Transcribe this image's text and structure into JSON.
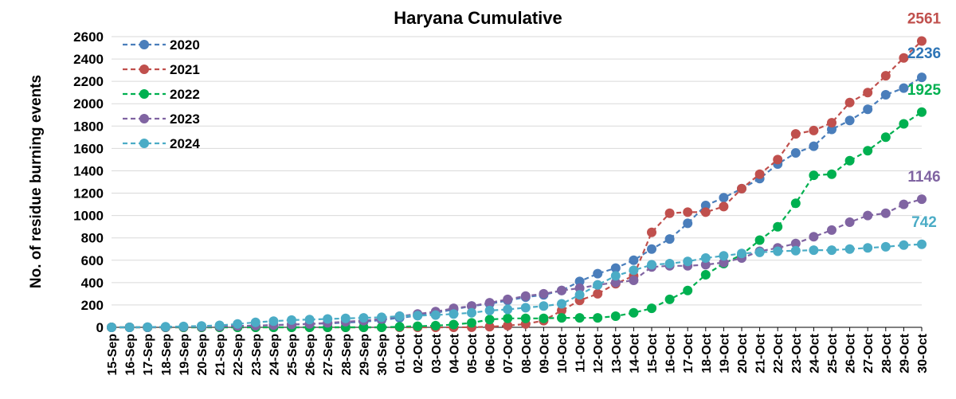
{
  "chart_data": {
    "type": "line",
    "title": "Haryana Cumulative",
    "xlabel": "",
    "ylabel": "No. of residue burning events",
    "ylim": [
      0,
      2600
    ],
    "yticks": [
      0,
      200,
      400,
      600,
      800,
      1000,
      1200,
      1400,
      1600,
      1800,
      2000,
      2200,
      2400,
      2600
    ],
    "grid": true,
    "legend_position": "top-left",
    "categories": [
      "15-Sep",
      "16-Sep",
      "17-Sep",
      "18-Sep",
      "19-Sep",
      "20-Sep",
      "21-Sep",
      "22-Sep",
      "23-Sep",
      "24-Sep",
      "25-Sep",
      "26-Sep",
      "27-Sep",
      "28-Sep",
      "29-Sep",
      "30-Sep",
      "01-Oct",
      "02-Oct",
      "03-Oct",
      "04-Oct",
      "05-Oct",
      "06-Oct",
      "07-Oct",
      "08-Oct",
      "09-Oct",
      "10-Oct",
      "11-Oct",
      "12-Oct",
      "13-Oct",
      "14-Oct",
      "15-Oct",
      "16-Oct",
      "17-Oct",
      "18-Oct",
      "19-Oct",
      "20-Oct",
      "21-Oct",
      "22-Oct",
      "23-Oct",
      "24-Oct",
      "25-Oct",
      "26-Oct",
      "27-Oct",
      "28-Oct",
      "29-Oct",
      "30-Oct"
    ],
    "series": [
      {
        "name": "2020",
        "color": "#4a7ebb",
        "end_label": "2236",
        "end_label_color": "#2e75b6",
        "values": [
          0,
          0,
          1,
          2,
          3,
          5,
          8,
          12,
          16,
          20,
          25,
          30,
          35,
          42,
          50,
          65,
          85,
          105,
          130,
          160,
          190,
          210,
          240,
          270,
          290,
          330,
          410,
          480,
          530,
          600,
          700,
          790,
          930,
          1090,
          1160,
          1240,
          1330,
          1460,
          1560,
          1620,
          1770,
          1850,
          1950,
          2080,
          2140,
          2236
        ]
      },
      {
        "name": "2021",
        "color": "#c0504d",
        "end_label": "2561",
        "end_label_color": "#c0504d",
        "values": [
          0,
          0,
          0,
          0,
          0,
          0,
          0,
          0,
          0,
          0,
          0,
          0,
          0,
          0,
          0,
          0,
          0,
          0,
          0,
          0,
          1,
          5,
          15,
          30,
          60,
          150,
          240,
          300,
          390,
          460,
          850,
          1020,
          1030,
          1030,
          1080,
          1240,
          1370,
          1500,
          1730,
          1760,
          1830,
          2010,
          2100,
          2250,
          2410,
          2561
        ]
      },
      {
        "name": "2022",
        "color": "#00b050",
        "end_label": "1925",
        "end_label_color": "#00b050",
        "values": [
          0,
          0,
          0,
          0,
          0,
          0,
          0,
          0,
          0,
          0,
          0,
          0,
          0,
          0,
          0,
          0,
          5,
          10,
          15,
          25,
          40,
          70,
          80,
          80,
          80,
          85,
          85,
          85,
          100,
          130,
          170,
          250,
          330,
          470,
          570,
          650,
          780,
          900,
          1110,
          1360,
          1370,
          1490,
          1580,
          1700,
          1820,
          1925
        ]
      },
      {
        "name": "2023",
        "color": "#8064a2",
        "end_label": "1146",
        "end_label_color": "#8064a2",
        "values": [
          0,
          0,
          0,
          2,
          4,
          6,
          8,
          12,
          15,
          20,
          25,
          30,
          40,
          50,
          60,
          75,
          100,
          120,
          140,
          170,
          190,
          220,
          250,
          280,
          300,
          330,
          350,
          380,
          400,
          420,
          540,
          550,
          550,
          560,
          580,
          620,
          680,
          710,
          750,
          810,
          870,
          940,
          1000,
          1020,
          1100,
          1146
        ]
      },
      {
        "name": "2024",
        "color": "#4bacc6",
        "end_label": "742",
        "end_label_color": "#4bacc6",
        "values": [
          0,
          0,
          2,
          5,
          8,
          12,
          18,
          30,
          45,
          55,
          65,
          70,
          75,
          80,
          85,
          90,
          100,
          105,
          110,
          120,
          130,
          150,
          160,
          175,
          190,
          210,
          290,
          380,
          460,
          510,
          560,
          570,
          590,
          620,
          640,
          660,
          670,
          680,
          685,
          690,
          690,
          700,
          710,
          720,
          735,
          742
        ]
      }
    ]
  }
}
